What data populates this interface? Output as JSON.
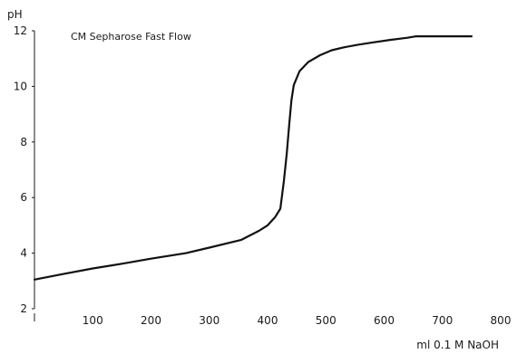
{
  "chart_data": {
    "type": "line",
    "title": "CM Sepharose Fast Flow",
    "ylabel": "pH",
    "xlabel": "ml 0.1 M NaOH",
    "xlim": [
      0,
      800
    ],
    "ylim": [
      2,
      12
    ],
    "x_ticks": [
      "100",
      "200",
      "300",
      "400",
      "500",
      "600",
      "700",
      "800"
    ],
    "y_ticks": [
      "2",
      "4",
      "6",
      "8",
      "10",
      "12"
    ],
    "grid": false,
    "series": [
      {
        "x": [
          0,
          50,
          100,
          150,
          200,
          260,
          300,
          355,
          385,
          400,
          413,
          422,
          428,
          433,
          437,
          441,
          445,
          455,
          470,
          490,
          510,
          530,
          555,
          580,
          610,
          640,
          655,
          700,
          750
        ],
        "y": [
          3.05,
          3.25,
          3.45,
          3.62,
          3.8,
          4.0,
          4.2,
          4.48,
          4.8,
          5.0,
          5.3,
          5.6,
          6.6,
          7.6,
          8.6,
          9.5,
          10.05,
          10.55,
          10.88,
          11.12,
          11.3,
          11.4,
          11.5,
          11.58,
          11.67,
          11.75,
          11.8,
          11.8,
          11.8
        ]
      }
    ]
  }
}
